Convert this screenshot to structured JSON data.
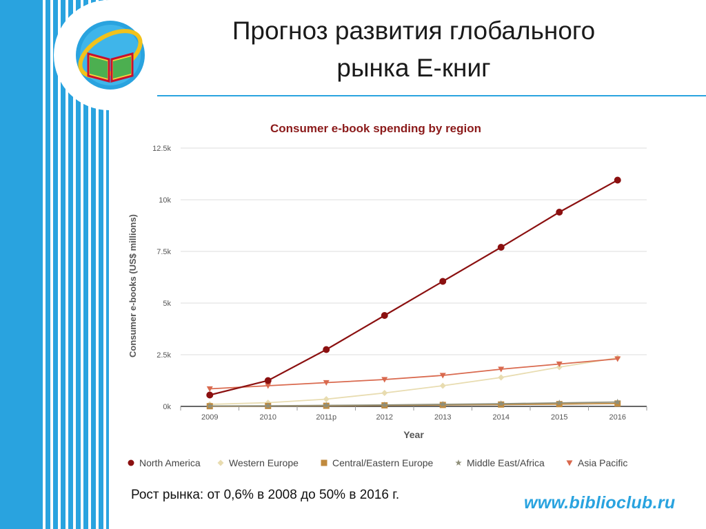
{
  "slide": {
    "title": "Прогноз развития глобального\nрынка Е-книг",
    "caption": "Рост рынка: от 0,6% в 2008 до 50% в 2016 г.",
    "site": "www.biblioclub.ru"
  },
  "colors": {
    "stripe": "#29a3df",
    "title_chart": "#8b1a1a",
    "north_america": "#8b1010",
    "western_europe": "#e8dcb0",
    "central_eastern_europe": "#c08a3e",
    "middle_east_africa": "#8f8f7a",
    "asia_pacific": "#d9694e"
  },
  "chart_data": {
    "type": "line",
    "title": "Consumer e-book spending by region",
    "xlabel": "Year",
    "ylabel": "Consumer e-books (US$ millions)",
    "categories": [
      "2009",
      "2010",
      "2011p",
      "2012",
      "2013",
      "2014",
      "2015",
      "2016"
    ],
    "ylim": [
      0,
      12500
    ],
    "yticks": [
      0,
      2500,
      5000,
      7500,
      10000,
      12500
    ],
    "ytick_labels": [
      "0k",
      "2.5k",
      "5k",
      "7.5k",
      "10k",
      "12.5k"
    ],
    "grid": true,
    "legend_position": "bottom",
    "series": [
      {
        "name": "North America",
        "marker": "circle",
        "color": "#8b1010",
        "values": [
          550,
          1250,
          2750,
          4400,
          6050,
          7700,
          9400,
          10950
        ]
      },
      {
        "name": "Western Europe",
        "marker": "diamond",
        "color": "#e8dcb0",
        "values": [
          100,
          180,
          350,
          650,
          1000,
          1400,
          1900,
          2350
        ]
      },
      {
        "name": "Central/Eastern Europe",
        "marker": "square",
        "color": "#c08a3e",
        "values": [
          10,
          20,
          30,
          50,
          70,
          90,
          110,
          140
        ]
      },
      {
        "name": "Middle East/Africa",
        "marker": "star",
        "color": "#8f8f7a",
        "values": [
          20,
          30,
          50,
          70,
          100,
          130,
          170,
          210
        ]
      },
      {
        "name": "Asia Pacific",
        "marker": "triangle-down",
        "color": "#d9694e",
        "values": [
          850,
          1000,
          1150,
          1300,
          1500,
          1800,
          2050,
          2300
        ]
      }
    ]
  }
}
